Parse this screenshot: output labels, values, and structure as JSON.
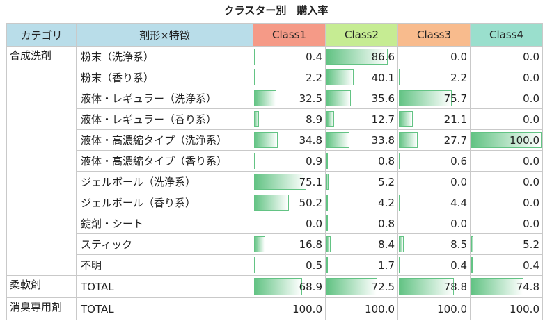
{
  "title": "クラスター別　購入率",
  "headers": [
    "カテゴリ",
    "剤形×特徴",
    "Class1",
    "Class2",
    "Class3",
    "Class4"
  ],
  "chart_data": {
    "type": "table",
    "title": "クラスター別　購入率",
    "columns": [
      "Class1",
      "Class2",
      "Class3",
      "Class4"
    ],
    "max": 100,
    "rows": [
      {
        "category": "合成洗剤",
        "form": "粉末（洗浄系）",
        "values": [
          "0.4",
          "86.6",
          "0.0",
          "0.0"
        ]
      },
      {
        "category": "",
        "form": "粉末（香り系）",
        "values": [
          "2.2",
          "40.1",
          "2.2",
          "0.0"
        ]
      },
      {
        "category": "",
        "form": "液体・レギュラー（洗浄系）",
        "values": [
          "32.5",
          "35.6",
          "75.7",
          "0.0"
        ]
      },
      {
        "category": "",
        "form": "液体・レギュラー（香り系）",
        "values": [
          "8.9",
          "12.7",
          "21.1",
          "0.0"
        ]
      },
      {
        "category": "",
        "form": "液体・高濃縮タイプ（洗浄系）",
        "values": [
          "34.8",
          "33.8",
          "27.7",
          "100.0"
        ]
      },
      {
        "category": "",
        "form": "液体・高濃縮タイプ（香り系）",
        "values": [
          "0.9",
          "0.8",
          "0.6",
          "0.0"
        ]
      },
      {
        "category": "",
        "form": "ジェルボール（洗浄系）",
        "values": [
          "75.1",
          "5.2",
          "0.0",
          "0.0"
        ]
      },
      {
        "category": "",
        "form": "ジェルボール（香り系）",
        "values": [
          "50.2",
          "4.2",
          "4.4",
          "0.0"
        ]
      },
      {
        "category": "",
        "form": "錠剤・シート",
        "values": [
          "0.0",
          "0.8",
          "0.0",
          "0.0"
        ]
      },
      {
        "category": "",
        "form": "スティック",
        "values": [
          "16.8",
          "8.4",
          "8.5",
          "5.2"
        ]
      },
      {
        "category": "",
        "form": "不明",
        "values": [
          "0.5",
          "1.7",
          "0.4",
          "0.4"
        ]
      },
      {
        "category": "柔軟剤",
        "form": "TOTAL",
        "values": [
          "68.9",
          "72.5",
          "78.8",
          "74.8"
        ]
      },
      {
        "category": "消臭専用剤",
        "form": "TOTAL",
        "values": [
          "100.0",
          "100.0",
          "100.0",
          "100.0"
        ],
        "no_bar": true
      }
    ],
    "colors": {
      "bar": "#63c384",
      "header_cat": "#b9dde9",
      "class1": "#f59a87",
      "class2": "#c6ec93",
      "class3": "#f8bb8d",
      "class4": "#9adfcd"
    }
  }
}
